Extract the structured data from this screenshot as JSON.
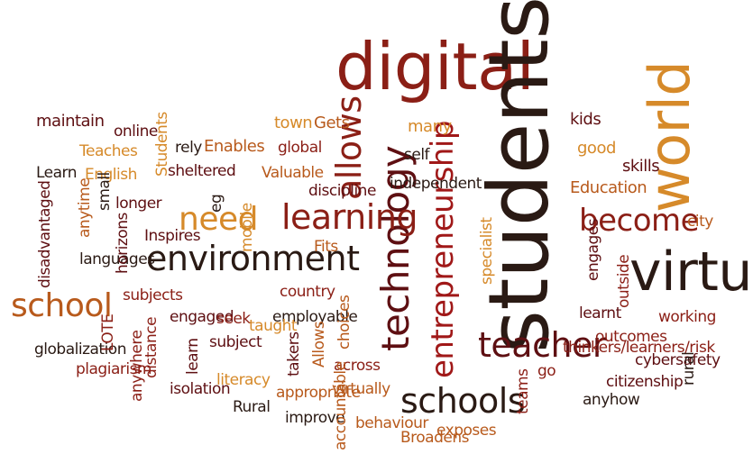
{
  "palette": {
    "dark_maroon": "#5e0f12",
    "brick_red": "#8b1f16",
    "burnt_orange": "#b85a1c",
    "gold": "#d68a2a",
    "near_black": "#2a1a14",
    "crimson": "#a01818"
  },
  "words": [
    "digital",
    "students",
    "world",
    "virtual",
    "technology",
    "learning",
    "environment",
    "need",
    "allows",
    "become",
    "school",
    "teacher",
    "schools",
    "entrepreneurship",
    "maintain",
    "online",
    "Teaches",
    "rely",
    "Enables",
    "town",
    "Gets",
    "many",
    "kids",
    "good",
    "skills",
    "Education",
    "city",
    "Learn",
    "English",
    "sheltered",
    "global",
    "Valuable",
    "discipline",
    "self",
    "independent",
    "longer",
    "Inspires",
    "languages",
    "Fits",
    "subjects",
    "country",
    "engaged",
    "seek",
    "employable",
    "learnt",
    "working",
    "subject",
    "taught",
    "outcomes",
    "globalization",
    "thinkers/learners/risk",
    "cybersafety",
    "plagiarism",
    "across",
    "literacy",
    "go",
    "citizenship",
    "isolation",
    "appropriate",
    "virtually",
    "anyhow",
    "Rural",
    "improve",
    "behaviour",
    "Broadens",
    "exposes",
    "Students",
    "eg",
    "mobile",
    "small",
    "anytime",
    "horizons",
    "disadvantaged",
    "specialist",
    "engages",
    "outside",
    "LOTE",
    "distance",
    "anywhere",
    "learn",
    "takers",
    "Allows",
    "choices",
    "teams",
    "rural",
    "accountable"
  ]
}
